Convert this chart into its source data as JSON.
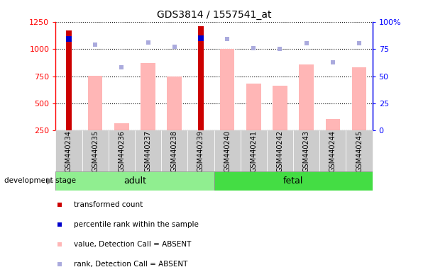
{
  "title": "GDS3814 / 1557541_at",
  "categories": [
    "GSM440234",
    "GSM440235",
    "GSM440236",
    "GSM440237",
    "GSM440238",
    "GSM440239",
    "GSM440240",
    "GSM440241",
    "GSM440242",
    "GSM440243",
    "GSM440244",
    "GSM440245"
  ],
  "transformed_count": [
    1170,
    null,
    null,
    null,
    null,
    1210,
    null,
    null,
    null,
    null,
    null,
    null
  ],
  "percentile_rank": [
    84,
    null,
    null,
    null,
    null,
    85,
    null,
    null,
    null,
    null,
    null,
    null
  ],
  "absent_value": [
    null,
    755,
    320,
    870,
    750,
    null,
    1000,
    685,
    660,
    855,
    355,
    830
  ],
  "absent_rank": [
    null,
    79,
    58,
    81,
    77,
    null,
    84,
    76,
    75,
    80,
    63,
    80
  ],
  "group_labels": [
    "adult",
    "fetal"
  ],
  "adult_indices": [
    0,
    1,
    2,
    3,
    4,
    5
  ],
  "fetal_indices": [
    6,
    7,
    8,
    9,
    10,
    11
  ],
  "color_adult": "#90EE90",
  "color_fetal": "#44DD44",
  "ylim_left": [
    250,
    1250
  ],
  "ylim_right": [
    0,
    100
  ],
  "yticks_left": [
    250,
    500,
    750,
    1000,
    1250
  ],
  "yticks_right": [
    0,
    25,
    50,
    75,
    100
  ],
  "color_transformed": "#CC0000",
  "color_percentile": "#0000CC",
  "color_absent_value": "#FFB6B6",
  "color_absent_rank": "#AAAADD",
  "legend_labels": [
    "transformed count",
    "percentile rank within the sample",
    "value, Detection Call = ABSENT",
    "rank, Detection Call = ABSENT"
  ],
  "development_stage_label": "development stage",
  "xticklabel_bg": "#CCCCCC"
}
